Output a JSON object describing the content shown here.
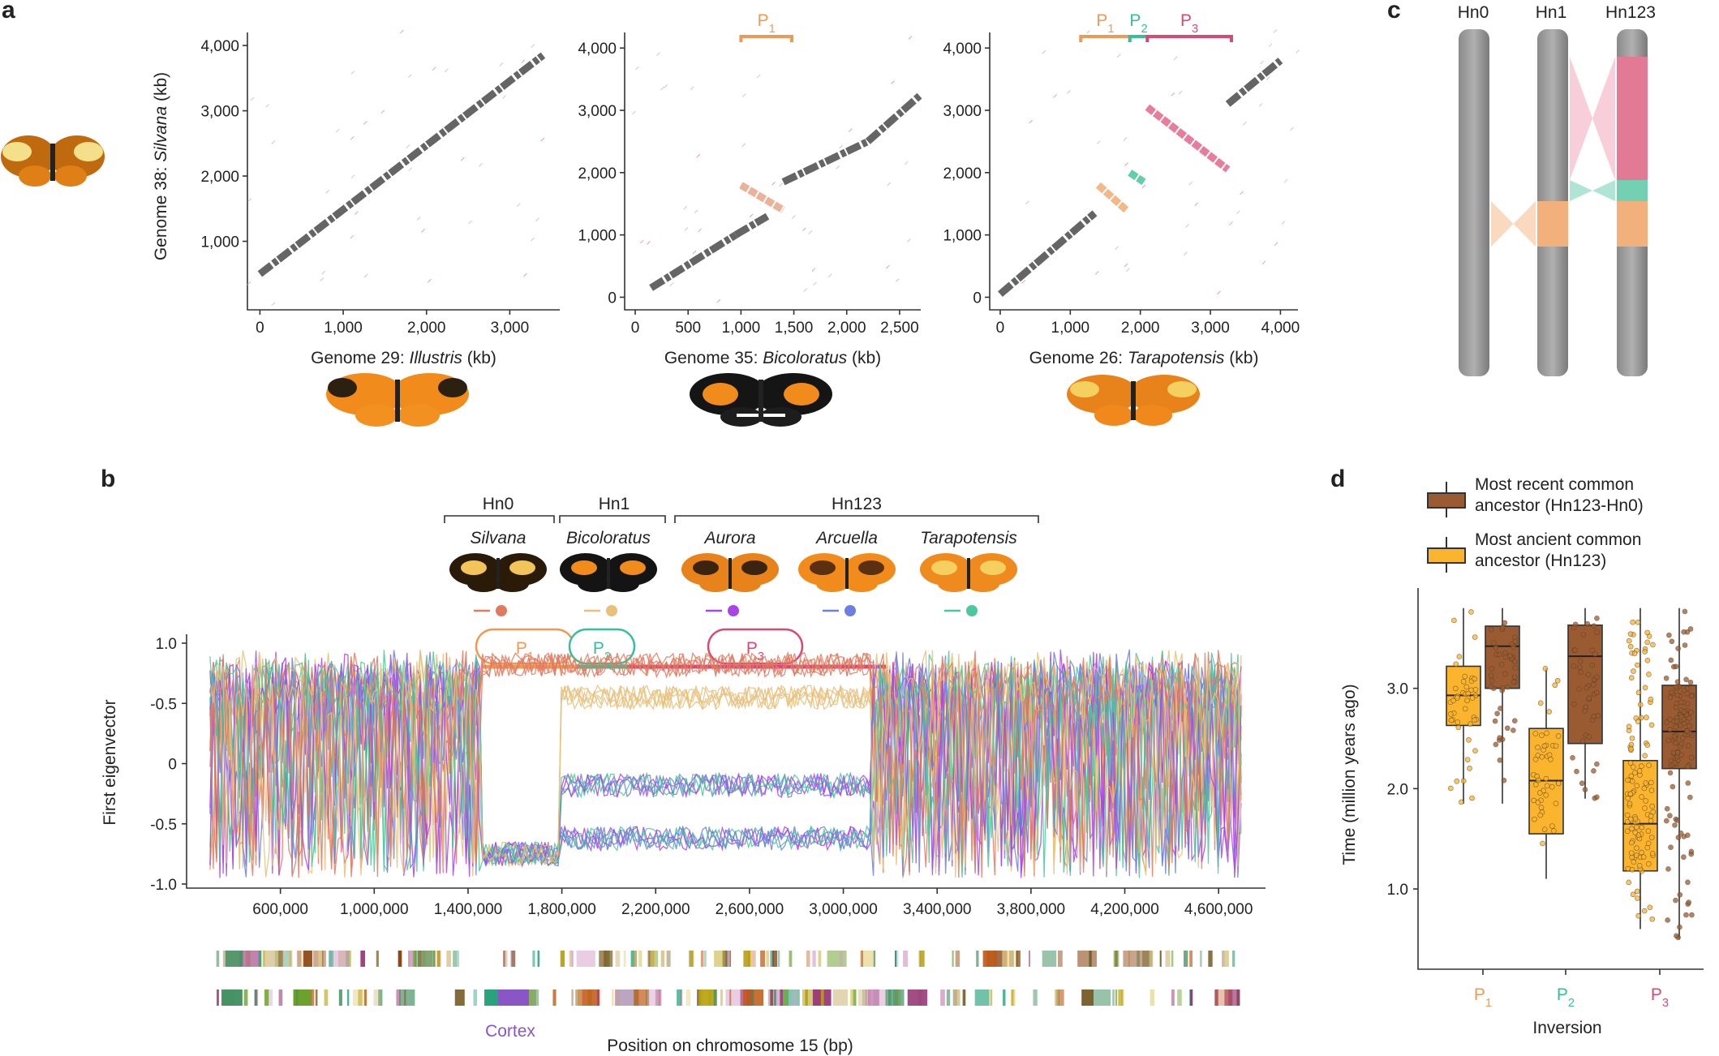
{
  "panels": {
    "a": "a",
    "b": "b",
    "c": "c",
    "d": "d"
  },
  "colors": {
    "p1": "#ee9a55",
    "p2": "#35c09a",
    "p3": "#d94a73",
    "dot_main": "#555555",
    "dot_inv": "#e9a98e",
    "silvana": "#e07a5f",
    "bicoloratus": "#e8c07a",
    "aurora": "#a845e6",
    "arcuella": "#6f7fe0",
    "tarapotensis": "#4ec79a",
    "mrca": "#9a5a32",
    "most_ancient": "#fbb42d"
  },
  "dotplots": [
    {
      "ylabel_prefix": "Genome 38: ",
      "ylabel_species": "Silvana",
      "ylabel_suffix": " (kb)",
      "yticks": [
        "0",
        "1,000",
        "2,000",
        "3,000",
        "4,000"
      ],
      "xticks": [
        "0",
        "1,000",
        "2,000",
        "3,000"
      ],
      "xlabel_prefix": "Genome 29: ",
      "xlabel_species": "Illustris",
      "xlabel_suffix": " (kb)",
      "ylim": [
        0,
        4200
      ],
      "xlim": [
        -150,
        3600
      ],
      "segments": [
        {
          "type": "main",
          "x0": 0,
          "y0": 500,
          "x1": 3400,
          "y1": 3850
        }
      ]
    },
    {
      "yticks": [
        "0",
        "1,000",
        "2,000",
        "3,000",
        "4,000"
      ],
      "xticks": [
        "0",
        "500",
        "1,000",
        "1,500",
        "2,000",
        "2,500"
      ],
      "xlabel_prefix": "Genome 35: ",
      "xlabel_species": "Bicoloratus",
      "xlabel_suffix": " (kb)",
      "ylim": [
        -150,
        4250
      ],
      "xlim": [
        -100,
        2700
      ],
      "inversion_bars": [
        {
          "label": "P",
          "sub": "1",
          "x0": 1000,
          "x1": 1480,
          "color_key": "p1"
        }
      ],
      "segments": [
        {
          "type": "main",
          "x0": 150,
          "y0": 150,
          "x1": 950,
          "y1": 1000
        },
        {
          "type": "main",
          "x0": 950,
          "y0": 1000,
          "x1": 1250,
          "y1": 1300
        },
        {
          "type": "inv",
          "x0": 1000,
          "y0": 1800,
          "x1": 1400,
          "y1": 1400
        },
        {
          "type": "main",
          "x0": 1400,
          "y0": 1850,
          "x1": 2200,
          "y1": 2500
        },
        {
          "type": "main",
          "x0": 2200,
          "y0": 2500,
          "x1": 2700,
          "y1": 3250
        }
      ]
    },
    {
      "yticks": [
        "0",
        "1,000",
        "2,000",
        "3,000",
        "4,000"
      ],
      "xticks": [
        "0",
        "1,000",
        "2,000",
        "3,000",
        "4,000"
      ],
      "xlabel_prefix": "Genome 26: ",
      "xlabel_species": "Tarapotensis",
      "xlabel_suffix": " (kb)",
      "ylim": [
        -150,
        4250
      ],
      "xlim": [
        -150,
        4250
      ],
      "inversion_bars": [
        {
          "label": "P",
          "sub": "1",
          "x0": 1150,
          "x1": 1850,
          "color_key": "p1"
        },
        {
          "label": "P",
          "sub": "2",
          "x0": 1850,
          "x1": 2100,
          "color_key": "p2"
        },
        {
          "label": "P",
          "sub": "3",
          "x0": 2100,
          "x1": 3300,
          "color_key": "p3"
        }
      ],
      "segments": [
        {
          "type": "main",
          "x0": 0,
          "y0": 50,
          "x1": 1350,
          "y1": 1350
        },
        {
          "type": "p1",
          "x0": 1400,
          "y0": 1800,
          "x1": 1800,
          "y1": 1400
        },
        {
          "type": "p2",
          "x0": 1850,
          "y0": 2000,
          "x1": 2050,
          "y1": 1850
        },
        {
          "type": "p3",
          "x0": 2100,
          "y0": 3050,
          "x1": 3250,
          "y1": 2050
        },
        {
          "type": "main",
          "x0": 3250,
          "y0": 3100,
          "x1": 4000,
          "y1": 3800
        }
      ]
    }
  ],
  "panel_c": {
    "chromosomes": [
      "Hn0",
      "Hn1",
      "Hn123"
    ]
  },
  "panel_b": {
    "group_headers": [
      "Hn0",
      "Hn1",
      "Hn123"
    ],
    "species": [
      "Silvana",
      "Bicoloratus",
      "Aurora",
      "Arcuella",
      "Tarapotensis"
    ],
    "inversions": [
      {
        "label": "P",
        "sub": "1",
        "color_key": "p1"
      },
      {
        "label": "P",
        "sub": "2",
        "color_key": "p2"
      },
      {
        "label": "P",
        "sub": "3",
        "color_key": "p3"
      }
    ],
    "ylabel": "First eigenvector",
    "yticks": [
      "1.0",
      "-0.5",
      "0",
      "-0.5",
      "-1.0"
    ],
    "xticks": [
      "600,000",
      "1,000,000",
      "1,400,000",
      "1,800,000",
      "2,200,000",
      "2,600,000",
      "3,000,000",
      "3,400,000",
      "3,800,000",
      "4,200,000",
      "4,600,000"
    ],
    "xlabel": "Position on chromosome 15 (bp)",
    "gene_label": "Cortex"
  },
  "chart_data": {
    "type": "box",
    "legend": [
      {
        "label_line1": "Most recent common",
        "label_line2": "ancestor (Hn123-Hn0)",
        "color_key": "mrca"
      },
      {
        "label_line1": "Most ancient common",
        "label_line2": "ancestor (Hn123)",
        "color_key": "most_ancient"
      }
    ],
    "ylabel": "Time (million years ago)",
    "xlabel": "Inversion",
    "yticks": [
      "1.0",
      "2.0",
      "3.0"
    ],
    "ylim": [
      0.2,
      4.0
    ],
    "categories": [
      {
        "label": "P",
        "sub": "1",
        "color_key": "p1"
      },
      {
        "label": "P",
        "sub": "2",
        "color_key": "p2"
      },
      {
        "label": "P",
        "sub": "3",
        "color_key": "p3"
      }
    ],
    "series": [
      {
        "name": "Most ancient common ancestor (Hn123)",
        "color_key": "most_ancient",
        "boxes": [
          {
            "min": 1.85,
            "q1": 2.63,
            "median": 2.93,
            "q3": 3.22,
            "max": 3.8
          },
          {
            "min": 1.1,
            "q1": 1.55,
            "median": 2.08,
            "q3": 2.6,
            "max": 3.2
          },
          {
            "min": 0.6,
            "q1": 1.18,
            "median": 1.65,
            "q3": 2.28,
            "max": 3.8
          }
        ]
      },
      {
        "name": "Most recent common ancestor (Hn123-Hn0)",
        "color_key": "mrca",
        "boxes": [
          {
            "min": 1.85,
            "q1": 3.0,
            "median": 3.42,
            "q3": 3.62,
            "max": 3.8
          },
          {
            "min": 1.9,
            "q1": 2.45,
            "median": 3.32,
            "q3": 3.63,
            "max": 3.8
          },
          {
            "min": 0.5,
            "q1": 2.2,
            "median": 2.57,
            "q3": 3.03,
            "max": 3.8
          }
        ]
      }
    ]
  }
}
